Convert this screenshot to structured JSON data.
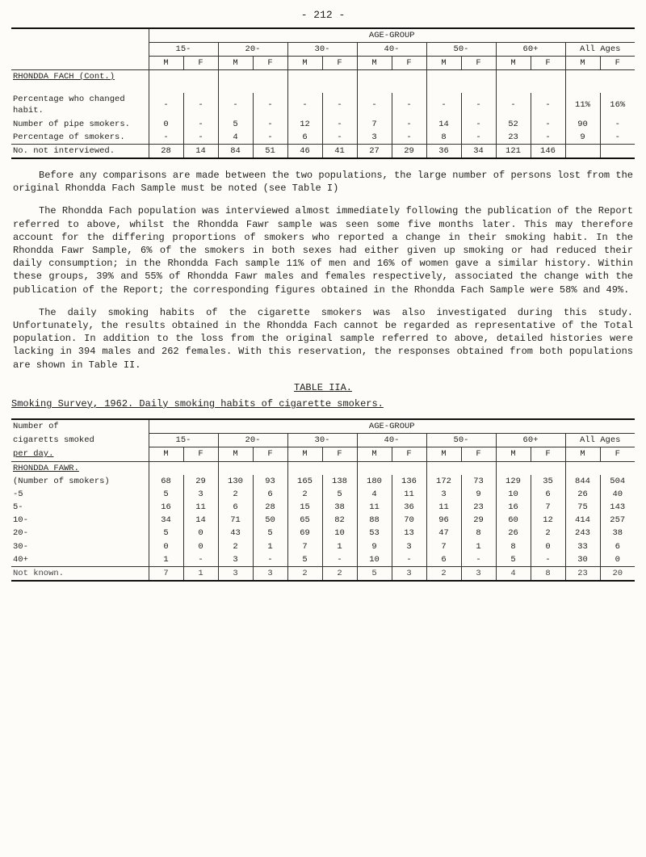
{
  "page_number": "- 212 -",
  "tableA": {
    "agegroup_label": "AGE-GROUP",
    "header_ages": [
      "15-",
      "20-",
      "30-",
      "40-",
      "50-",
      "60+",
      "All Ages"
    ],
    "header_mf": "MF",
    "section": "RHONDDA FACH (Cont.)",
    "rows": {
      "pct_changed": {
        "label": "Percentage who changed habit.",
        "cells": [
          "-",
          "-",
          "-",
          "-",
          "-",
          "-",
          "-",
          "-",
          "-",
          "-",
          "-",
          "-",
          "11%",
          "16%"
        ]
      },
      "pipe_smokers": {
        "label": "Number of pipe smokers.",
        "cells": [
          "0",
          "-",
          "5",
          "-",
          "12",
          "-",
          "7",
          "-",
          "14",
          "-",
          "52",
          "-",
          "90",
          "-"
        ]
      },
      "pct_smokers": {
        "label": "Percentage of smokers.",
        "cells": [
          "-",
          "-",
          "4",
          "-",
          "6",
          "-",
          "3",
          "-",
          "8",
          "-",
          "23",
          "-",
          "9",
          "-"
        ]
      },
      "not_interviewed": {
        "label": "No. not interviewed.",
        "cells": [
          "28",
          "14",
          "84",
          "51",
          "46",
          "41",
          "27",
          "29",
          "36",
          "34",
          "121",
          "146",
          "",
          ""
        ]
      }
    }
  },
  "para1": "Before any comparisons are made between the two populations, the large number of persons lost from the original Rhondda Fach Sample must be noted (see Table I)",
  "para2": "The Rhondda Fach population was interviewed almost immediately following the publication of the Report referred to above, whilst the Rhondda Fawr sample was seen some five months later.  This may therefore account for the differing proportions of smokers who reported a change in their smoking habit.  In the Rhondda Fawr Sample, 6% of the smokers in both sexes had either given up smoking or had reduced their daily consumption; in the Rhondda Fach sample 11% of men and 16% of women gave a similar history.  Within these groups, 39% and 55% of Rhondda Fawr males and females respectively, associated the change with the publication of the Report; the corresponding figures obtained in the Rhondda Fach Sample were 58% and 49%.",
  "para3": "The daily smoking habits of the cigarette smokers was also investigated during this study.  Unfortunately, the results obtained in the Rhondda Fach cannot be regarded as representative of the Total population.  In addition to the loss from the original sample referred to above, detailed histories were lacking in 394 males and 262 females.  With this reservation, the responses obtained from both populations are shown in Table II.",
  "table2_title": "TABLE IIA.",
  "table2_caption": "Smoking Survey, 1962.  Daily smoking habits of cigarette smokers.",
  "tableB": {
    "col0a": "Number of",
    "col0b": "cigaretts smoked",
    "col0c": "per day.",
    "agegroup_label": "AGE-GROUP",
    "header_ages": [
      "15-",
      "20-",
      "30-",
      "40-",
      "50-",
      "60+",
      "All Ages"
    ],
    "section": "RHONDDA FAWR.",
    "rows": [
      {
        "label": "(Number of smokers)",
        "cells": [
          "68",
          "29",
          "130",
          "93",
          "165",
          "138",
          "180",
          "136",
          "172",
          "73",
          "129",
          "35",
          "844",
          "504"
        ]
      },
      {
        "label": "-5",
        "cells": [
          "5",
          "3",
          "2",
          "6",
          "2",
          "5",
          "4",
          "11",
          "3",
          "9",
          "10",
          "6",
          "26",
          "40"
        ]
      },
      {
        "label": "5-",
        "cells": [
          "16",
          "11",
          "6",
          "28",
          "15",
          "38",
          "11",
          "36",
          "11",
          "23",
          "16",
          "7",
          "75",
          "143"
        ]
      },
      {
        "label": "10-",
        "cells": [
          "34",
          "14",
          "71",
          "50",
          "65",
          "82",
          "88",
          "70",
          "96",
          "29",
          "60",
          "12",
          "414",
          "257"
        ]
      },
      {
        "label": "20-",
        "cells": [
          "5",
          "0",
          "43",
          "5",
          "69",
          "10",
          "53",
          "13",
          "47",
          "8",
          "26",
          "2",
          "243",
          "38"
        ]
      },
      {
        "label": "30-",
        "cells": [
          "0",
          "0",
          "2",
          "1",
          "7",
          "1",
          "9",
          "3",
          "7",
          "1",
          "8",
          "0",
          "33",
          "6"
        ]
      },
      {
        "label": "40+",
        "cells": [
          "1",
          "-",
          "3",
          "-",
          "5",
          "-",
          "10",
          "-",
          "6",
          "-",
          "5",
          "-",
          "30",
          "0"
        ]
      }
    ],
    "footer": {
      "label": "Not known.",
      "cells": [
        "7",
        "1",
        "3",
        "3",
        "2",
        "2",
        "5",
        "3",
        "2",
        "3",
        "4",
        "8",
        "23",
        "20"
      ]
    }
  },
  "mf": {
    "m": "M",
    "f": "F"
  }
}
